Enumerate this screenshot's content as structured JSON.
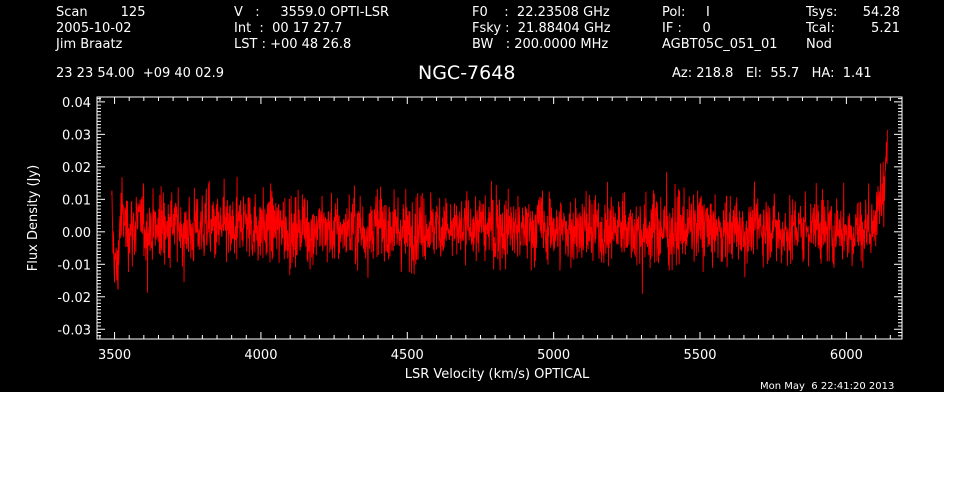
{
  "header": {
    "col1": [
      "Scan        125",
      "2005-10-02",
      "Jim Braatz"
    ],
    "col2": [
      "V   :     3559.0 OPTI-LSR",
      "Int  :  00 17 27.7",
      "LST : +00 48 26.8"
    ],
    "col3": [
      "F0    :  22.23508 GHz",
      "Fsky :  21.88404 GHz",
      "BW   : 200.0000 MHz"
    ],
    "col4": [
      "Pol:     I",
      "IF :     0",
      "AGBT05C_051_01"
    ],
    "col5_labels": [
      "Tsys:",
      "Tcal:",
      "Nod"
    ],
    "col5_values": [
      "54.28",
      "5.21",
      ""
    ],
    "coords": "23 23 54.00  +09 40 02.9",
    "source": "NGC-7648",
    "pointing": "Az: 218.8   El:  55.7   HA:  1.41",
    "timestamp": "Mon May  6 22:41:20 2013"
  },
  "colors": {
    "background": "#000000",
    "foreground": "#ffffff",
    "trace": "#ff0000"
  },
  "chart_data": {
    "type": "line",
    "xlabel": "LSR Velocity (km/s) OPTICAL",
    "ylabel": "Flux Density (Jy)",
    "xlim": [
      3440,
      6190
    ],
    "ylim": [
      -0.033,
      0.0415
    ],
    "xticks": [
      3500,
      4000,
      4500,
      5000,
      5500,
      6000
    ],
    "xtick_labels": [
      "3500",
      "4000",
      "4500",
      "5000",
      "5500",
      "6000"
    ],
    "yticks": [
      -0.03,
      -0.02,
      -0.01,
      0.0,
      0.01,
      0.02,
      0.03,
      0.04
    ],
    "ytick_labels": [
      "-0.03",
      "-0.02",
      "-0.01",
      "0.00",
      "0.01",
      "0.02",
      "0.03",
      "0.04"
    ],
    "grid": false,
    "series": [
      {
        "x": [
          3490,
          3500,
          3510,
          3520,
          3540,
          3560,
          3580,
          3600,
          3650,
          3700,
          3750,
          3800,
          3850,
          3900,
          3950,
          4000,
          4050,
          4100,
          4150,
          4200,
          4250,
          4300,
          4350,
          4400,
          4450,
          4500,
          4550,
          4600,
          4650,
          4700,
          4750,
          4800,
          4850,
          4900,
          4950,
          5000,
          5050,
          5100,
          5150,
          5200,
          5250,
          5300,
          5350,
          5400,
          5450,
          5500,
          5550,
          5600,
          5650,
          5700,
          5750,
          5800,
          5850,
          5900,
          5950,
          6000,
          6050,
          6080,
          6100,
          6110,
          6120,
          6130,
          6140
        ],
        "y": [
          0.004,
          -0.008,
          -0.014,
          0.006,
          0.002,
          0.001,
          0.003,
          0.002,
          0.001,
          0.002,
          0.0,
          0.002,
          0.001,
          0.0,
          0.003,
          0.001,
          0.002,
          0.0,
          0.001,
          0.002,
          0.0,
          0.001,
          0.0,
          0.002,
          0.001,
          0.0,
          0.001,
          0.002,
          0.0,
          0.001,
          0.002,
          0.0,
          0.001,
          0.0,
          0.002,
          0.001,
          0.0,
          0.001,
          0.0,
          0.001,
          0.002,
          0.0,
          0.001,
          0.0,
          0.001,
          0.002,
          0.0,
          0.001,
          0.0,
          0.002,
          0.001,
          0.0,
          0.001,
          0.002,
          0.0,
          0.001,
          0.0,
          0.002,
          0.003,
          0.006,
          0.01,
          0.016,
          0.024
        ],
        "noise_rms": 0.0055
      }
    ]
  }
}
